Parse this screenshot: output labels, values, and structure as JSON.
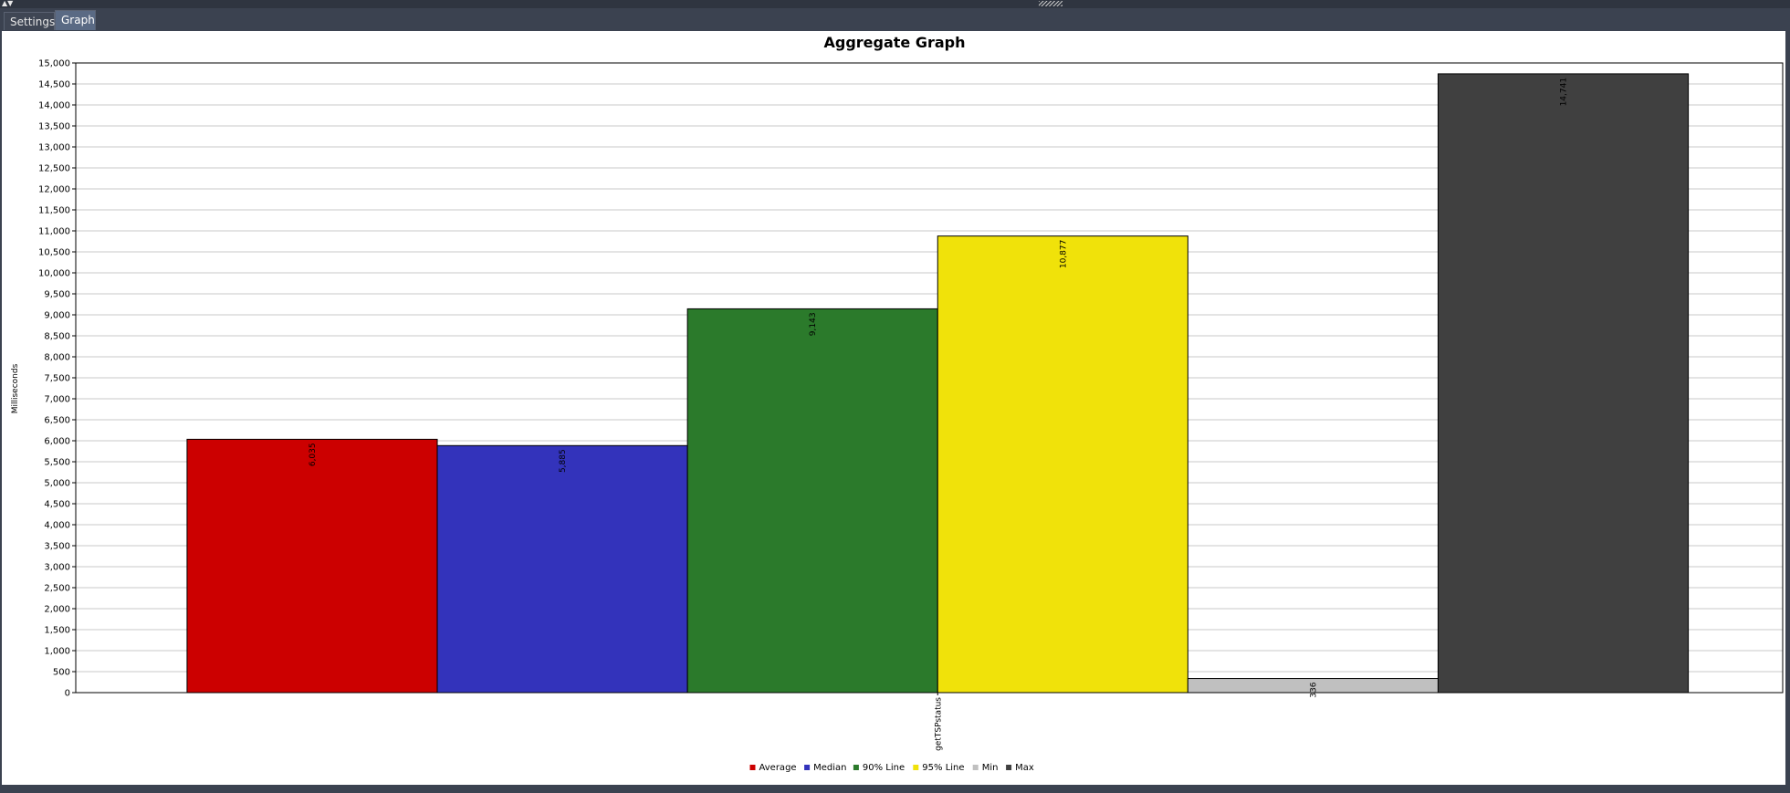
{
  "tabs": [
    {
      "label": "Settings"
    },
    {
      "label": "Graph"
    }
  ],
  "chart_data": {
    "type": "bar",
    "title": "Aggregate Graph",
    "ylabel": "Milliseconds",
    "xlabel": "",
    "categories": [
      "getTSPstatus"
    ],
    "series": [
      {
        "name": "Average",
        "values": [
          6035
        ],
        "label": "6,035",
        "color": "#cc0000"
      },
      {
        "name": "Median",
        "values": [
          5885
        ],
        "label": "5,885",
        "color": "#3333bb"
      },
      {
        "name": "90% Line",
        "values": [
          9143
        ],
        "label": "9,143",
        "color": "#2b7a2b"
      },
      {
        "name": "95% Line",
        "values": [
          10877
        ],
        "label": "10,877",
        "color": "#f0e20a"
      },
      {
        "name": "Min",
        "values": [
          336
        ],
        "label": "336",
        "color": "#c0c0c0"
      },
      {
        "name": "Max",
        "values": [
          14741
        ],
        "label": "14,741",
        "color": "#404040"
      }
    ],
    "ylim": [
      0,
      15000
    ],
    "yticks": [
      "0",
      "500",
      "1,000",
      "1,500",
      "2,000",
      "2,500",
      "3,000",
      "3,500",
      "4,000",
      "4,500",
      "5,000",
      "5,500",
      "6,000",
      "6,500",
      "7,000",
      "7,500",
      "8,000",
      "8,500",
      "9,000",
      "9,500",
      "10,000",
      "10,500",
      "11,000",
      "11,500",
      "12,000",
      "12,500",
      "13,000",
      "13,500",
      "14,000",
      "14,500",
      "15,000"
    ],
    "grid": true,
    "legend_position": "bottom"
  }
}
